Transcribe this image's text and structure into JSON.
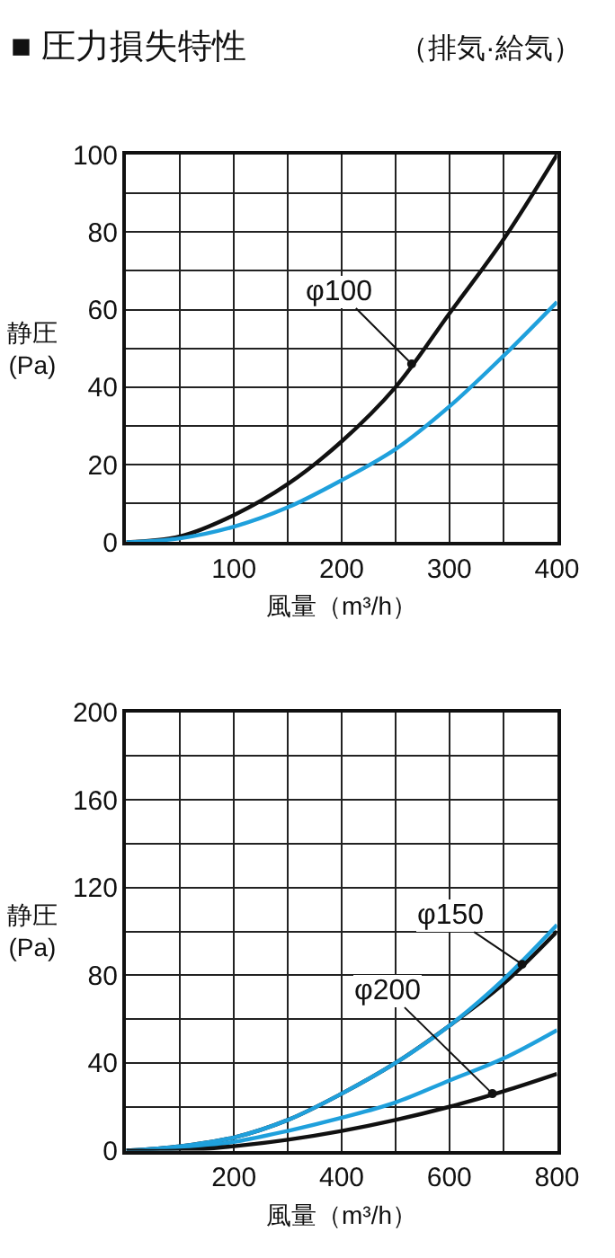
{
  "chart_data": [
    {
      "type": "line",
      "title": "■ 圧力損失特性",
      "subtitle": "（排気·給気）",
      "xlabel": "風量（m³/h）",
      "ylabel": "静圧\n(Pa)",
      "x": [
        0,
        50,
        100,
        150,
        200,
        250,
        300,
        350,
        400
      ],
      "series": [
        {
          "color": "#111111",
          "values": [
            0,
            1.5,
            7,
            15,
            26,
            40,
            59,
            78,
            100
          ]
        },
        {
          "color": "#1fa0dc",
          "values": [
            0,
            1,
            4,
            9,
            16,
            24,
            35,
            48,
            62
          ]
        }
      ],
      "xlim": [
        0,
        400
      ],
      "ylim": [
        0,
        100
      ],
      "xticks": [
        {
          "value": 0,
          "label": null
        },
        {
          "value": 50,
          "label": null
        },
        100,
        {
          "value": 150,
          "label": null
        },
        200,
        {
          "value": 250,
          "label": null
        },
        300,
        {
          "value": 350,
          "label": null
        },
        400
      ],
      "yticks": [
        0,
        {
          "value": 10,
          "label": null
        },
        20,
        {
          "value": 30,
          "label": null
        },
        40,
        {
          "value": 50,
          "label": null
        },
        60,
        {
          "value": 70,
          "label": null
        },
        80,
        {
          "value": 90,
          "label": null
        },
        100
      ],
      "grid": true,
      "marker": "none",
      "line_style": "solid",
      "annotations": [
        {
          "text": "φ100",
          "x": 265,
          "y": 46
        }
      ]
    },
    {
      "type": "line",
      "xlabel": "風量（m³/h）",
      "ylabel": "静圧\n(Pa)",
      "x": [
        0,
        100,
        200,
        300,
        400,
        500,
        600,
        700,
        800
      ],
      "series": [
        {
          "color": "#111111",
          "values": [
            0,
            2,
            6,
            14,
            26,
            40,
            57,
            76,
            100
          ]
        },
        {
          "color": "#1fa0dc",
          "values": [
            0,
            2,
            6,
            14,
            26,
            40,
            57,
            78,
            103
          ]
        },
        {
          "color": "#1fa0dc",
          "values": [
            0,
            1,
            4,
            9,
            15,
            22,
            32,
            42,
            55
          ]
        },
        {
          "color": "#111111",
          "values": [
            0,
            0,
            2,
            5,
            9,
            14,
            20,
            27,
            35
          ]
        }
      ],
      "xlim": [
        0,
        800
      ],
      "ylim": [
        0,
        200
      ],
      "xticks": [
        {
          "value": 0,
          "label": null
        },
        {
          "value": 100,
          "label": null
        },
        200,
        {
          "value": 300,
          "label": null
        },
        400,
        {
          "value": 500,
          "label": null
        },
        600,
        {
          "value": 700,
          "label": null
        },
        800
      ],
      "yticks": [
        0,
        {
          "value": 20,
          "label": null
        },
        40,
        {
          "value": 60,
          "label": null
        },
        80,
        {
          "value": 100,
          "label": null
        },
        120,
        {
          "value": 140,
          "label": null
        },
        160,
        {
          "value": 180,
          "label": null
        },
        200
      ],
      "grid": true,
      "marker": "none",
      "line_style": "solid",
      "annotations": [
        {
          "text": "φ150",
          "x": 735,
          "y": 85
        },
        {
          "text": "φ200",
          "x": 680,
          "y": 26
        }
      ]
    }
  ]
}
